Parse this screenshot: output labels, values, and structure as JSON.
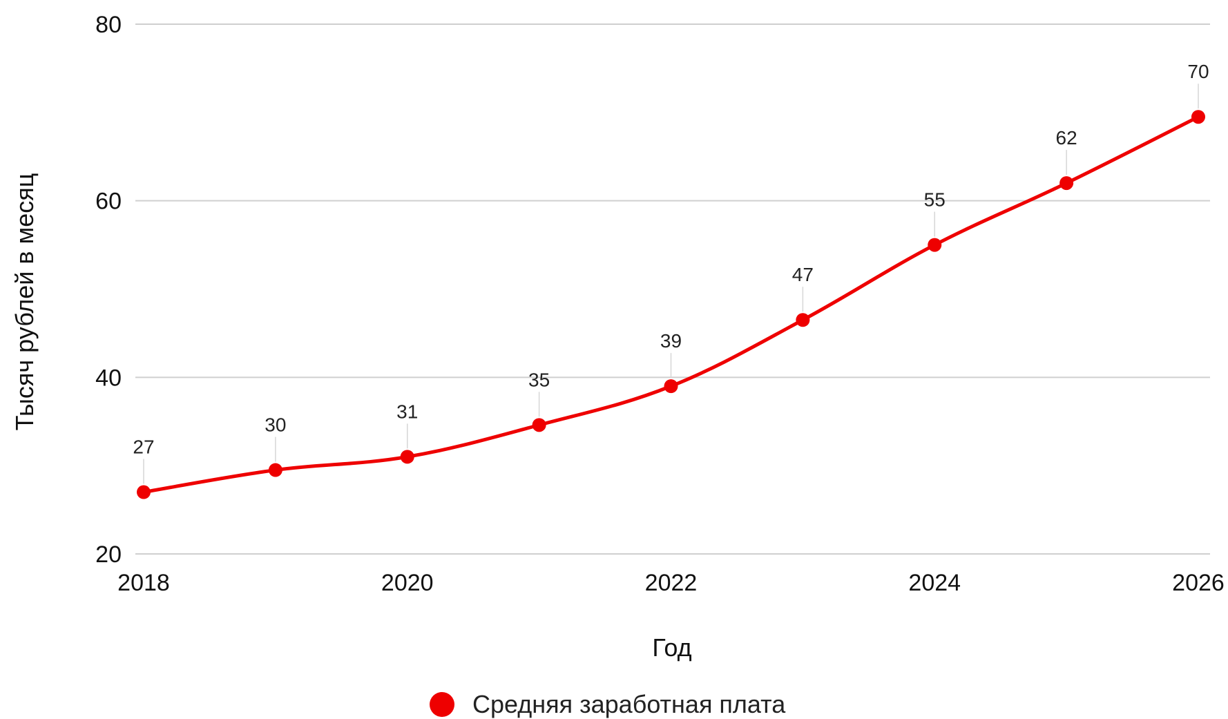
{
  "chart_data": {
    "type": "line",
    "xlabel": "Год",
    "ylabel": "Тысяч рублей в месяц",
    "ylim": [
      20,
      80
    ],
    "xlim": [
      2018,
      2026
    ],
    "y_ticks": [
      "20",
      "40",
      "60",
      "80"
    ],
    "x_ticks": [
      "2018",
      "2020",
      "2022",
      "2024",
      "2026"
    ],
    "grid": true,
    "legend_position": "bottom",
    "series": [
      {
        "name": "Средняя заработная плата",
        "color": "#ee0000",
        "x": [
          2018,
          2019,
          2020,
          2021,
          2022,
          2023,
          2024,
          2025,
          2026
        ],
        "values": [
          27,
          29.5,
          31,
          34.6,
          39,
          46.5,
          55,
          62,
          69.5
        ],
        "labels": [
          "27",
          "30",
          "31",
          "35",
          "39",
          "47",
          "55",
          "62",
          "70"
        ]
      }
    ]
  }
}
